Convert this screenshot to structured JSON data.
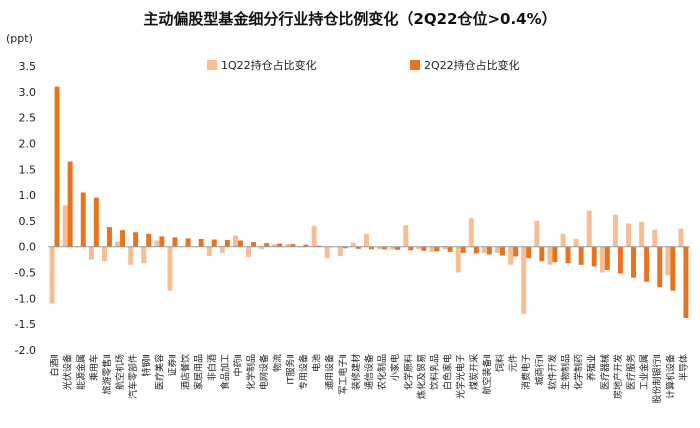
{
  "chart_data": {
    "type": "bar",
    "title": "主动偏股型基金细分行业持仓比例变化（2Q22仓位>0.4%）",
    "unit": "(ppt)",
    "ylim": [
      -2.0,
      3.5
    ],
    "yticks": [
      "3.5",
      "3.0",
      "2.5",
      "2.0",
      "1.5",
      "1.0",
      "0.5",
      "0.0",
      "-0.5",
      "-1.0",
      "-1.5",
      "-2.0"
    ],
    "grid": false,
    "legend_position": "top",
    "categories": [
      "白酒Ⅱ",
      "光伏设备",
      "能源金属",
      "乘用车",
      "旅游零售Ⅱ",
      "航空机场",
      "汽车零部件",
      "特钢Ⅱ",
      "医疗美容",
      "证券Ⅱ",
      "酒店餐饮",
      "家居用品",
      "非白酒",
      "食品加工",
      "中药Ⅱ",
      "化学制品",
      "电网设备",
      "物流",
      "IT服务Ⅱ",
      "专用设备",
      "电池",
      "通用设备",
      "军工电子Ⅱ",
      "装修建材",
      "通信设备",
      "农化制品",
      "小家电",
      "化学原料",
      "炼化及贸易",
      "饮料乳品",
      "白色家电",
      "光学光电子",
      "煤炭开采",
      "航空装备Ⅱ",
      "饲料",
      "元件",
      "消费电子",
      "城商行Ⅱ",
      "软件开发",
      "生物制品",
      "化学制药",
      "养殖业",
      "医疗器械",
      "房地产开发",
      "医疗服务",
      "工业金属",
      "股份制银行Ⅱ",
      "计算机设备",
      "半导体"
    ],
    "series": [
      {
        "name": "1Q22持仓占比变化",
        "color": "#f7be95",
        "values": [
          -1.1,
          0.8,
          0.0,
          -0.25,
          -0.28,
          0.1,
          -0.35,
          -0.32,
          0.12,
          -0.85,
          0.0,
          0.0,
          -0.18,
          -0.12,
          0.22,
          -0.2,
          -0.05,
          0.05,
          0.05,
          0.0,
          0.4,
          -0.22,
          -0.18,
          0.08,
          0.25,
          -0.05,
          -0.05,
          0.42,
          -0.05,
          -0.1,
          -0.05,
          -0.5,
          0.55,
          -0.12,
          -0.12,
          -0.35,
          -1.3,
          0.5,
          -0.35,
          0.25,
          0.15,
          0.7,
          -0.5,
          0.62,
          0.45,
          0.48,
          0.33,
          -0.55,
          0.35
        ]
      },
      {
        "name": "2Q22持仓占比变化",
        "color": "#e8731f",
        "values": [
          3.1,
          1.65,
          1.05,
          0.95,
          0.38,
          0.32,
          0.28,
          0.25,
          0.2,
          0.18,
          0.16,
          0.15,
          0.14,
          0.13,
          0.12,
          0.09,
          0.07,
          0.06,
          0.05,
          0.04,
          0.02,
          0.0,
          -0.03,
          -0.04,
          -0.05,
          -0.05,
          -0.06,
          -0.07,
          -0.08,
          -0.09,
          -0.1,
          -0.12,
          -0.13,
          -0.15,
          -0.17,
          -0.19,
          -0.22,
          -0.28,
          -0.3,
          -0.32,
          -0.35,
          -0.38,
          -0.45,
          -0.52,
          -0.6,
          -0.68,
          -0.78,
          -0.85,
          -1.38
        ]
      }
    ]
  }
}
